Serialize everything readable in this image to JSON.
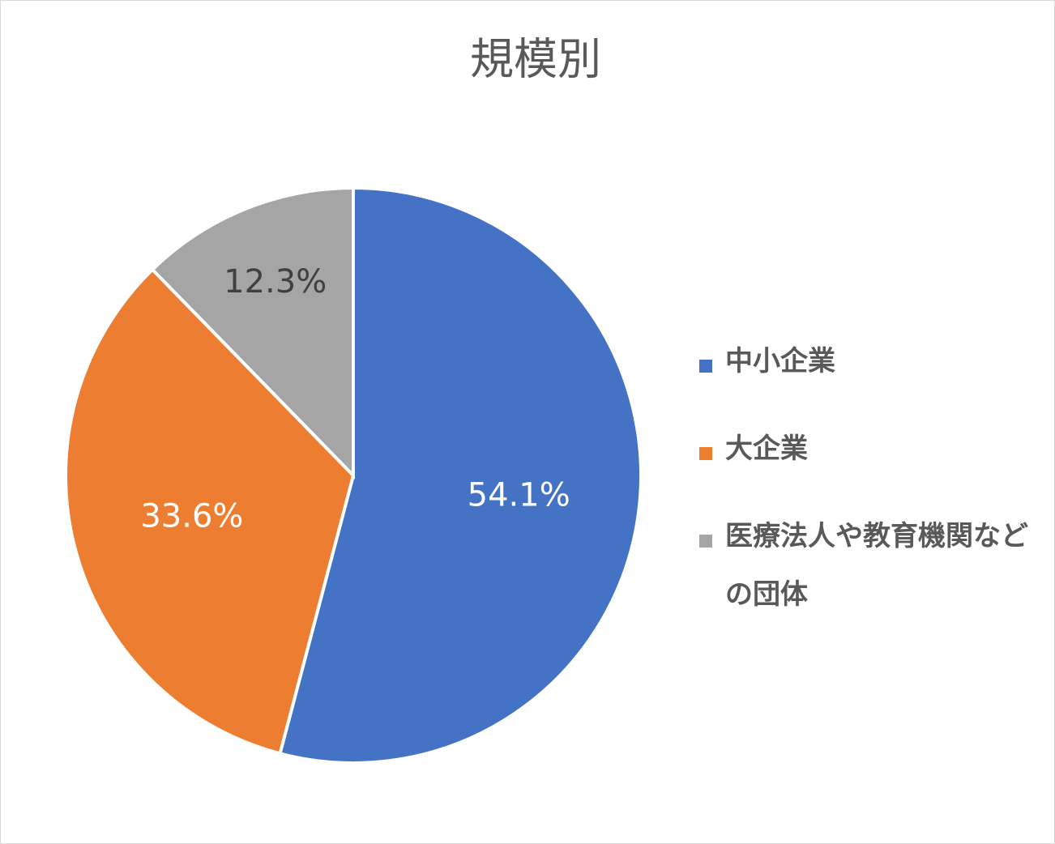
{
  "chart_data": {
    "type": "pie",
    "title": "規模別",
    "categories": [
      "中小企業",
      "大企業",
      "医療法人や教育機関などの団体"
    ],
    "values": [
      54.1,
      33.6,
      12.3
    ],
    "value_labels": [
      "54.1%",
      "33.6%",
      "12.3%"
    ],
    "colors": [
      "#4472c4",
      "#ed7d31",
      "#a5a5a5"
    ],
    "label_colors": [
      "#ffffff",
      "#ffffff",
      "#404040"
    ],
    "legend": "right"
  }
}
